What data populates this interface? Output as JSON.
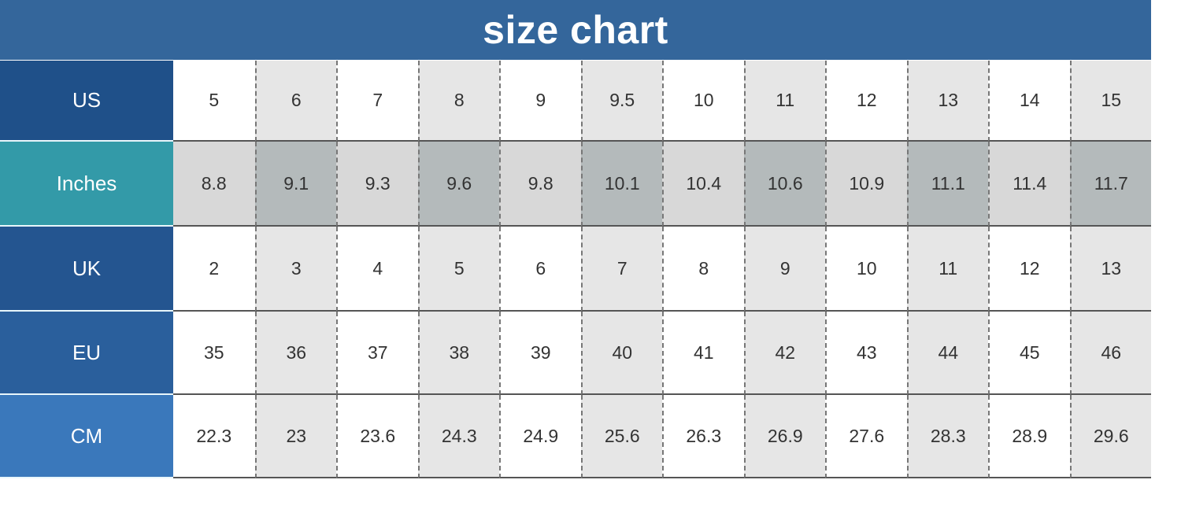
{
  "title": "size chart",
  "colors": {
    "title_bg": "#34669b",
    "us": "#1f5089",
    "inches": "#339aa8",
    "uk": "#245590",
    "eu": "#2a5f9c",
    "cm": "#3a78bb"
  },
  "chart_data": {
    "type": "table",
    "title": "size chart",
    "rows": [
      {
        "label": "US",
        "values": [
          "5",
          "6",
          "7",
          "8",
          "9",
          "9.5",
          "10",
          "11",
          "12",
          "13",
          "14",
          "15"
        ]
      },
      {
        "label": "Inches",
        "values": [
          "8.8",
          "9.1",
          "9.3",
          "9.6",
          "9.8",
          "10.1",
          "10.4",
          "10.6",
          "10.9",
          "11.1",
          "11.4",
          "11.7"
        ]
      },
      {
        "label": "UK",
        "values": [
          "2",
          "3",
          "4",
          "5",
          "6",
          "7",
          "8",
          "9",
          "10",
          "11",
          "12",
          "13"
        ]
      },
      {
        "label": "EU",
        "values": [
          "35",
          "36",
          "37",
          "38",
          "39",
          "40",
          "41",
          "42",
          "43",
          "44",
          "45",
          "46"
        ]
      },
      {
        "label": "CM",
        "values": [
          "22.3",
          "23",
          "23.6",
          "24.3",
          "24.9",
          "25.6",
          "26.3",
          "26.9",
          "27.6",
          "28.3",
          "28.9",
          "29.6"
        ]
      }
    ]
  }
}
